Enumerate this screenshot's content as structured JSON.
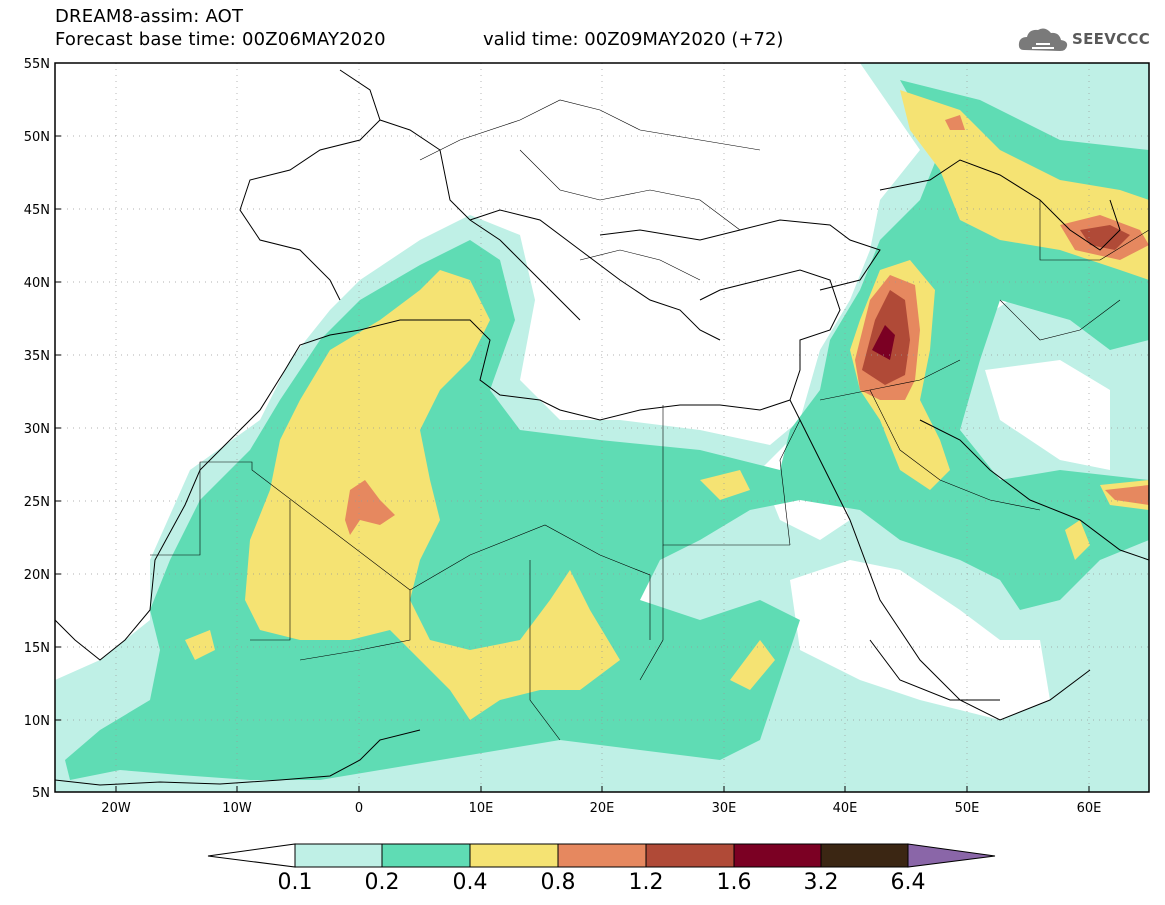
{
  "title": {
    "line1": "DREAM8-assim: AOT",
    "line2": "Forecast base time: 00Z06MAY2020",
    "valid": "valid time: 00Z09MAY2020 (+72)"
  },
  "logo": {
    "text": "SEEVCCC",
    "icon": "cloud-icon"
  },
  "map": {
    "projection": "lat-lon",
    "lon_range": [
      -25,
      65
    ],
    "lat_range": [
      5,
      55
    ],
    "lat_ticks": [
      "55N",
      "50N",
      "45N",
      "40N",
      "35N",
      "30N",
      "25N",
      "20N",
      "15N",
      "10N",
      "5N"
    ],
    "lon_ticks": [
      "20W",
      "10W",
      "0",
      "10E",
      "20E",
      "30E",
      "40E",
      "50E",
      "60E"
    ],
    "grid": true
  },
  "colorbar": {
    "labels": [
      "0.1",
      "0.2",
      "0.4",
      "0.8",
      "1.2",
      "1.6",
      "3.2",
      "6.4"
    ],
    "colors": [
      "#ffffff",
      "#bff0e6",
      "#5fdcb4",
      "#f5e373",
      "#e6885f",
      "#b04a37",
      "#7b0023",
      "#3b2613",
      "#8a66a8"
    ]
  }
}
